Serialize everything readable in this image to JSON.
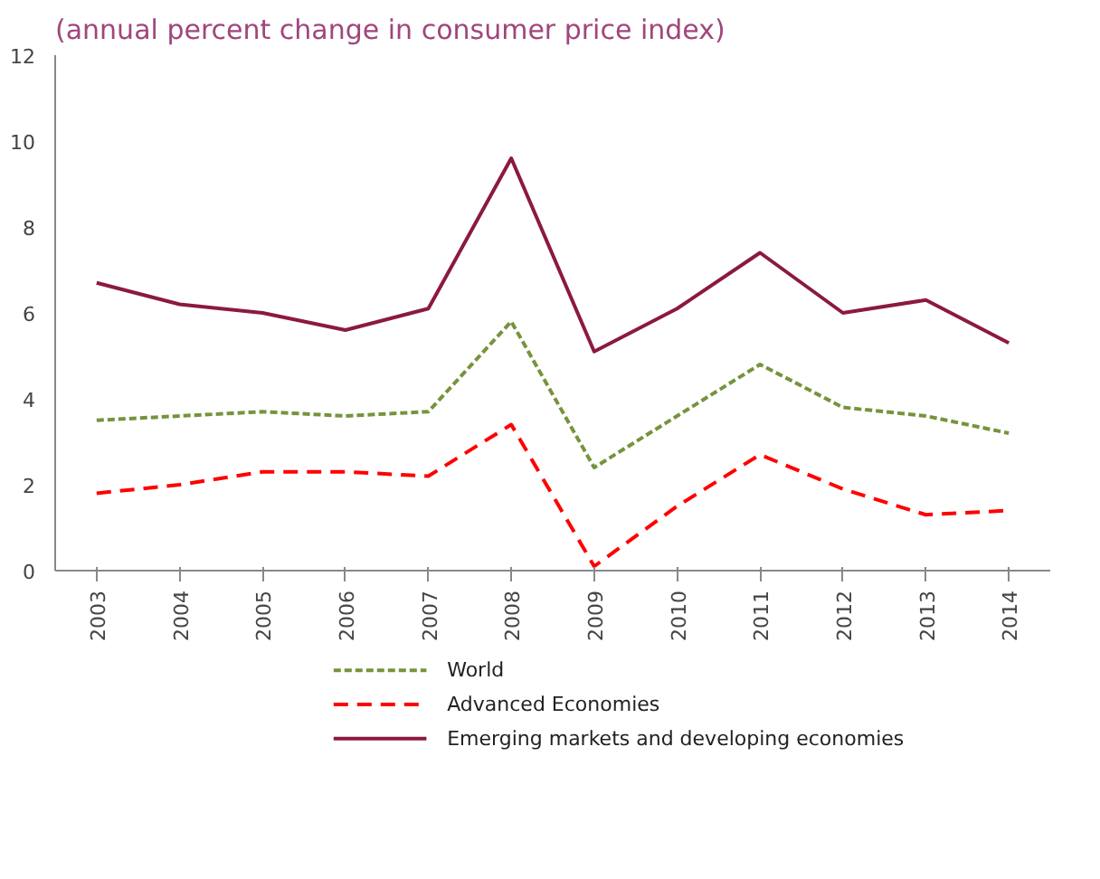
{
  "chart_data": {
    "type": "line",
    "subtitle": "(annual percent change in consumer price index)",
    "categories": [
      "2003",
      "2004",
      "2005",
      "2006",
      "2007",
      "2008",
      "2009",
      "2010",
      "2011",
      "2012",
      "2013",
      "2014"
    ],
    "series": [
      {
        "name": "World",
        "color": "#77933c",
        "line_style": "dotted",
        "values": [
          3.5,
          3.6,
          3.7,
          3.6,
          3.7,
          5.8,
          2.4,
          3.6,
          4.8,
          3.8,
          3.6,
          3.2
        ]
      },
      {
        "name": "Advanced Economies",
        "color": "#ff0000",
        "line_style": "dashed",
        "values": [
          1.8,
          2.0,
          2.3,
          2.3,
          2.2,
          3.4,
          0.1,
          1.5,
          2.7,
          1.9,
          1.3,
          1.4
        ]
      },
      {
        "name": "Emerging markets and developing economies",
        "color": "#8b1a3e",
        "line_style": "solid",
        "values": [
          6.7,
          6.2,
          6.0,
          5.6,
          6.1,
          9.6,
          5.1,
          6.1,
          7.4,
          6.0,
          6.3,
          5.3
        ]
      }
    ],
    "ylim": [
      0,
      12
    ],
    "yticks": [
      0,
      2,
      4,
      6,
      8,
      10,
      12
    ],
    "grid": false,
    "legend": "bottom",
    "marker": "none"
  }
}
